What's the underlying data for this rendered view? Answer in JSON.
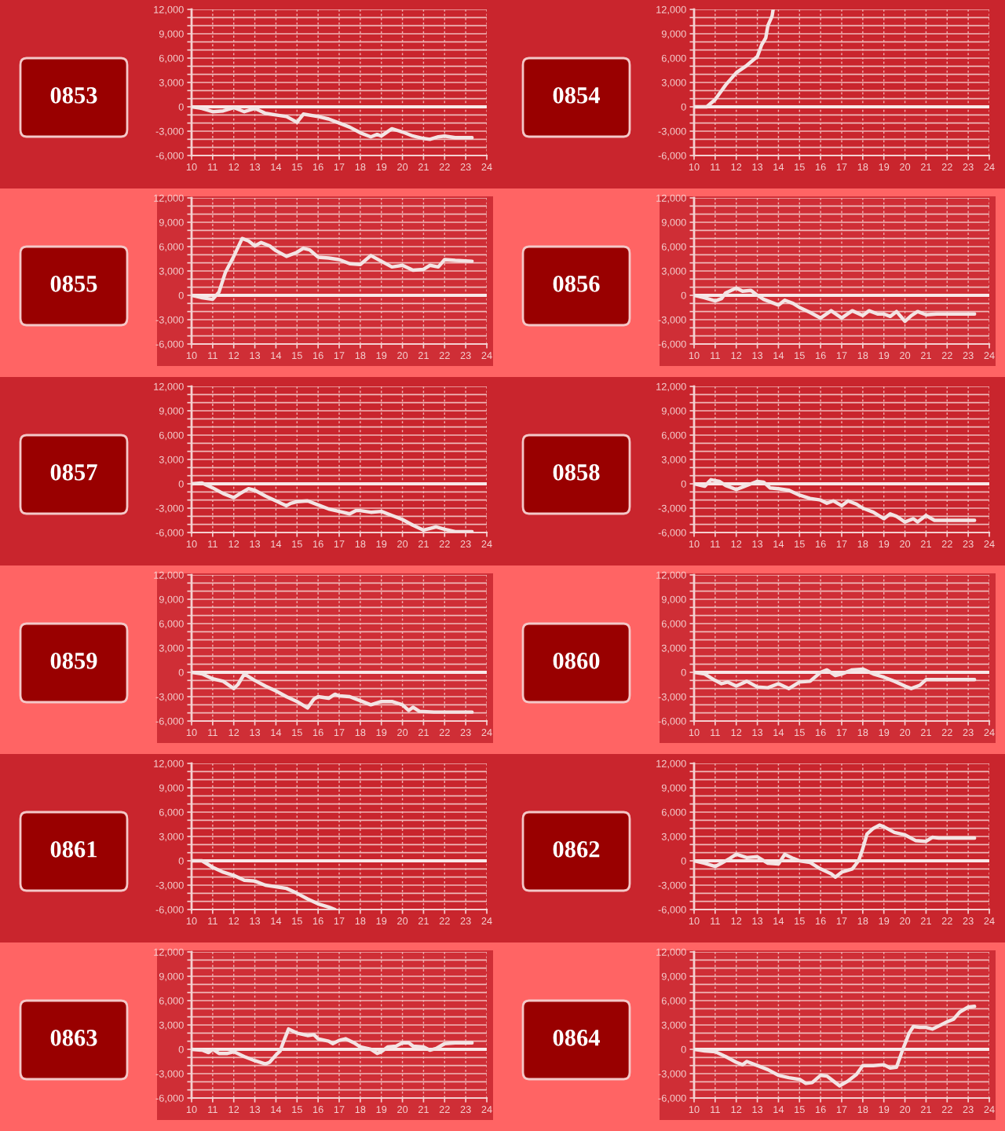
{
  "chart_data": [
    {
      "type": "line",
      "title": "0853",
      "xlim": [
        10,
        24
      ],
      "xticks": [
        10,
        11,
        12,
        13,
        14,
        15,
        16,
        17,
        18,
        19,
        20,
        21,
        22,
        23,
        24
      ],
      "ylim": [
        -6000,
        12000
      ],
      "yticks": [
        {
          "value": -6000,
          "label": "-6,000"
        },
        {
          "value": -5000,
          "label": null
        },
        {
          "value": -4000,
          "label": null
        },
        {
          "value": -3000,
          "label": "-3,000"
        },
        {
          "value": -2000,
          "label": null
        },
        {
          "value": -1000,
          "label": null
        },
        0,
        {
          "value": 1000,
          "label": null
        },
        {
          "value": 2000,
          "label": null
        },
        {
          "value": 3000,
          "label": "3,000"
        },
        {
          "value": 4000,
          "label": null
        },
        {
          "value": 5000,
          "label": null
        },
        {
          "value": 6000,
          "label": "6,000"
        },
        {
          "value": 7000,
          "label": null
        },
        {
          "value": 8000,
          "label": null
        },
        {
          "value": 9000,
          "label": "9,000"
        },
        {
          "value": 10000,
          "label": null
        },
        {
          "value": 11000,
          "label": null
        },
        {
          "value": 12000,
          "label": "12,000"
        }
      ],
      "grid": true,
      "ref_lines": [
        {
          "axis": "y",
          "value": 0
        }
      ],
      "series": [
        {
          "color": "#f3e4e4",
          "x": [
            10,
            10.5,
            11,
            11.5,
            12,
            12.5,
            13,
            13.5,
            14,
            14.5,
            15,
            15.3,
            16,
            16.5,
            17,
            17.5,
            18,
            18.5,
            18.8,
            19,
            19.5,
            20,
            20.5,
            21,
            21.3,
            21.7,
            22,
            22.5,
            23.3
          ],
          "values": [
            0,
            -200,
            -600,
            -500,
            -100,
            -600,
            -200,
            -800,
            -1000,
            -1200,
            -1900,
            -900,
            -1200,
            -1500,
            -2000,
            -2500,
            -3200,
            -3700,
            -3400,
            -3600,
            -2700,
            -3100,
            -3600,
            -3900,
            -4000,
            -3700,
            -3600,
            -3800,
            -3800
          ]
        }
      ]
    },
    {
      "type": "line",
      "title": "0854",
      "xlim": [
        10,
        24
      ],
      "xticks": [
        10,
        11,
        12,
        13,
        14,
        15,
        16,
        17,
        18,
        19,
        20,
        21,
        22,
        23,
        24
      ],
      "ylim": [
        -6000,
        12000
      ],
      "yticks": [
        {
          "value": -6000,
          "label": "-6,000"
        },
        {
          "value": -5000,
          "label": null
        },
        {
          "value": -4000,
          "label": null
        },
        {
          "value": -3000,
          "label": "-3,000"
        },
        {
          "value": -2000,
          "label": null
        },
        {
          "value": -1000,
          "label": null
        },
        0,
        {
          "value": 1000,
          "label": null
        },
        {
          "value": 2000,
          "label": null
        },
        {
          "value": 3000,
          "label": "3,000"
        },
        {
          "value": 4000,
          "label": null
        },
        {
          "value": 5000,
          "label": null
        },
        {
          "value": 6000,
          "label": "6,000"
        },
        {
          "value": 7000,
          "label": null
        },
        {
          "value": 8000,
          "label": null
        },
        {
          "value": 9000,
          "label": "9,000"
        },
        {
          "value": 10000,
          "label": null
        },
        {
          "value": 11000,
          "label": null
        },
        {
          "value": 12000,
          "label": "12,000"
        }
      ],
      "grid": true,
      "ref_lines": [
        {
          "axis": "y",
          "value": 0
        }
      ],
      "series": [
        {
          "color": "#f3e4e4",
          "x": [
            10,
            10.6,
            11,
            11.5,
            12,
            12.5,
            13,
            13.2,
            13.4,
            13.5,
            13.7,
            13.75
          ],
          "values": [
            0,
            0,
            900,
            2700,
            4200,
            5100,
            6200,
            7600,
            8500,
            10000,
            11200,
            12000
          ]
        }
      ]
    },
    {
      "type": "line",
      "title": "0855",
      "xlim": [
        10,
        24
      ],
      "xticks": [
        10,
        11,
        12,
        13,
        14,
        15,
        16,
        17,
        18,
        19,
        20,
        21,
        22,
        23,
        24
      ],
      "ylim": [
        -6000,
        12000
      ],
      "yticks": [
        {
          "value": -6000,
          "label": "-6,000"
        },
        {
          "value": -5000,
          "label": null
        },
        {
          "value": -4000,
          "label": null
        },
        {
          "value": -3000,
          "label": "-3,000"
        },
        {
          "value": -2000,
          "label": null
        },
        {
          "value": -1000,
          "label": null
        },
        0,
        {
          "value": 1000,
          "label": null
        },
        {
          "value": 2000,
          "label": null
        },
        {
          "value": 3000,
          "label": "3,000"
        },
        {
          "value": 4000,
          "label": null
        },
        {
          "value": 5000,
          "label": null
        },
        {
          "value": 6000,
          "label": "6,000"
        },
        {
          "value": 7000,
          "label": null
        },
        {
          "value": 8000,
          "label": null
        },
        {
          "value": 9000,
          "label": "9,000"
        },
        {
          "value": 10000,
          "label": null
        },
        {
          "value": 11000,
          "label": null
        },
        {
          "value": 12000,
          "label": "12,000"
        }
      ],
      "grid": true,
      "ref_lines": [
        {
          "axis": "y",
          "value": 0
        }
      ],
      "series": [
        {
          "color": "#f3e4e4",
          "x": [
            10,
            10.5,
            11,
            11.3,
            11.6,
            12,
            12.4,
            12.7,
            13,
            13.3,
            13.7,
            14,
            14.5,
            15,
            15.3,
            15.6,
            16,
            16.5,
            17,
            17.5,
            18,
            18.5,
            19,
            19.5,
            20,
            20.5,
            21,
            21.3,
            21.7,
            22,
            22.5,
            23.3
          ],
          "values": [
            0,
            -300,
            -500,
            400,
            2800,
            4800,
            7000,
            6700,
            6100,
            6500,
            6100,
            5500,
            4800,
            5300,
            5800,
            5600,
            4700,
            4600,
            4400,
            3900,
            3800,
            4900,
            4200,
            3500,
            3700,
            3100,
            3200,
            3700,
            3500,
            4400,
            4300,
            4200
          ]
        }
      ]
    },
    {
      "type": "line",
      "title": "0856",
      "xlim": [
        10,
        24
      ],
      "xticks": [
        10,
        11,
        12,
        13,
        14,
        15,
        16,
        17,
        18,
        19,
        20,
        21,
        22,
        23,
        24
      ],
      "ylim": [
        -6000,
        12000
      ],
      "yticks": [
        {
          "value": -6000,
          "label": "-6,000"
        },
        {
          "value": -5000,
          "label": null
        },
        {
          "value": -4000,
          "label": null
        },
        {
          "value": -3000,
          "label": "-3,000"
        },
        {
          "value": -2000,
          "label": null
        },
        {
          "value": -1000,
          "label": null
        },
        0,
        {
          "value": 1000,
          "label": null
        },
        {
          "value": 2000,
          "label": null
        },
        {
          "value": 3000,
          "label": "3,000"
        },
        {
          "value": 4000,
          "label": null
        },
        {
          "value": 5000,
          "label": null
        },
        {
          "value": 6000,
          "label": "6,000"
        },
        {
          "value": 7000,
          "label": null
        },
        {
          "value": 8000,
          "label": null
        },
        {
          "value": 9000,
          "label": "9,000"
        },
        {
          "value": 10000,
          "label": null
        },
        {
          "value": 11000,
          "label": null
        },
        {
          "value": 12000,
          "label": "12,000"
        }
      ],
      "grid": true,
      "ref_lines": [
        {
          "axis": "y",
          "value": 0
        }
      ],
      "series": [
        {
          "color": "#f3e4e4",
          "x": [
            10,
            10.5,
            11,
            11.3,
            11.5,
            12,
            12.3,
            12.7,
            13,
            13.3,
            14,
            14.3,
            14.7,
            15,
            15.5,
            16,
            16.5,
            17,
            17.5,
            18,
            18.3,
            18.7,
            19,
            19.3,
            19.6,
            20,
            20.3,
            20.6,
            21,
            21.5,
            23.3
          ],
          "values": [
            0,
            -300,
            -700,
            -400,
            300,
            900,
            500,
            600,
            0,
            -500,
            -1200,
            -600,
            -1000,
            -1500,
            -2100,
            -2800,
            -1900,
            -2800,
            -1900,
            -2500,
            -1900,
            -2300,
            -2300,
            -2600,
            -2000,
            -3200,
            -2500,
            -2000,
            -2400,
            -2300,
            -2300
          ]
        }
      ]
    },
    {
      "type": "line",
      "title": "0857",
      "xlim": [
        10,
        24
      ],
      "xticks": [
        10,
        11,
        12,
        13,
        14,
        15,
        16,
        17,
        18,
        19,
        20,
        21,
        22,
        23,
        24
      ],
      "ylim": [
        -6000,
        12000
      ],
      "yticks": [
        {
          "value": -6000,
          "label": "-6,000"
        },
        {
          "value": -5000,
          "label": null
        },
        {
          "value": -4000,
          "label": null
        },
        {
          "value": -3000,
          "label": "-3,000"
        },
        {
          "value": -2000,
          "label": null
        },
        {
          "value": -1000,
          "label": null
        },
        0,
        {
          "value": 1000,
          "label": null
        },
        {
          "value": 2000,
          "label": null
        },
        {
          "value": 3000,
          "label": "3,000"
        },
        {
          "value": 4000,
          "label": null
        },
        {
          "value": 5000,
          "label": null
        },
        {
          "value": 6000,
          "label": "6,000"
        },
        {
          "value": 7000,
          "label": null
        },
        {
          "value": 8000,
          "label": null
        },
        {
          "value": 9000,
          "label": "9,000"
        },
        {
          "value": 10000,
          "label": null
        },
        {
          "value": 11000,
          "label": null
        },
        {
          "value": 12000,
          "label": "12,000"
        }
      ],
      "grid": true,
      "ref_lines": [
        {
          "axis": "y",
          "value": 0
        }
      ],
      "series": [
        {
          "color": "#f3e4e4",
          "x": [
            10,
            10.5,
            11,
            11.5,
            12,
            12.3,
            12.7,
            13,
            13.5,
            14,
            14.5,
            14.7,
            15,
            15.5,
            16,
            16.5,
            17,
            17.5,
            17.8,
            18,
            18.5,
            19,
            19.5,
            20,
            20.5,
            21,
            21.3,
            21.6,
            22,
            22.5,
            23.3
          ],
          "values": [
            0,
            100,
            -500,
            -1200,
            -1700,
            -1200,
            -600,
            -800,
            -1500,
            -2100,
            -2700,
            -2400,
            -2200,
            -2100,
            -2600,
            -3100,
            -3400,
            -3700,
            -3300,
            -3300,
            -3500,
            -3400,
            -3900,
            -4400,
            -5100,
            -5700,
            -5500,
            -5300,
            -5600,
            -5900,
            -5900
          ]
        }
      ]
    },
    {
      "type": "line",
      "title": "0858",
      "xlim": [
        10,
        24
      ],
      "xticks": [
        10,
        11,
        12,
        13,
        14,
        15,
        16,
        17,
        18,
        19,
        20,
        21,
        22,
        23,
        24
      ],
      "ylim": [
        -6000,
        12000
      ],
      "yticks": [
        {
          "value": -6000,
          "label": "-6,000"
        },
        {
          "value": -5000,
          "label": null
        },
        {
          "value": -4000,
          "label": null
        },
        {
          "value": -3000,
          "label": "-3,000"
        },
        {
          "value": -2000,
          "label": null
        },
        {
          "value": -1000,
          "label": null
        },
        0,
        {
          "value": 1000,
          "label": null
        },
        {
          "value": 2000,
          "label": null
        },
        {
          "value": 3000,
          "label": "3,000"
        },
        {
          "value": 4000,
          "label": null
        },
        {
          "value": 5000,
          "label": null
        },
        {
          "value": 6000,
          "label": "6,000"
        },
        {
          "value": 7000,
          "label": null
        },
        {
          "value": 8000,
          "label": null
        },
        {
          "value": 9000,
          "label": "9,000"
        },
        {
          "value": 10000,
          "label": null
        },
        {
          "value": 11000,
          "label": null
        },
        {
          "value": 12000,
          "label": "12,000"
        }
      ],
      "grid": true,
      "ref_lines": [
        {
          "axis": "y",
          "value": 0
        }
      ],
      "series": [
        {
          "color": "#f3e4e4",
          "x": [
            10,
            10.5,
            10.8,
            11.2,
            11.5,
            12,
            12.3,
            12.7,
            13,
            13.3,
            13.6,
            14,
            14.5,
            15,
            15.5,
            16,
            16.3,
            16.6,
            17,
            17.3,
            17.7,
            18,
            18.5,
            19,
            19.3,
            19.6,
            20,
            20.4,
            20.6,
            21,
            21.4,
            22,
            23.3
          ],
          "values": [
            0,
            -300,
            500,
            300,
            -200,
            -700,
            -400,
            0,
            300,
            200,
            -500,
            -600,
            -800,
            -1400,
            -1800,
            -2000,
            -2400,
            -2100,
            -2700,
            -2100,
            -2500,
            -3000,
            -3500,
            -4300,
            -3700,
            -4000,
            -4700,
            -4300,
            -4700,
            -3900,
            -4500,
            -4500,
            -4500
          ]
        }
      ]
    },
    {
      "type": "line",
      "title": "0859",
      "xlim": [
        10,
        24
      ],
      "xticks": [
        10,
        11,
        12,
        13,
        14,
        15,
        16,
        17,
        18,
        19,
        20,
        21,
        22,
        23,
        24
      ],
      "ylim": [
        -6000,
        12000
      ],
      "yticks": [
        {
          "value": -6000,
          "label": "-6,000"
        },
        {
          "value": -5000,
          "label": null
        },
        {
          "value": -4000,
          "label": null
        },
        {
          "value": -3000,
          "label": "-3,000"
        },
        {
          "value": -2000,
          "label": null
        },
        {
          "value": -1000,
          "label": null
        },
        0,
        {
          "value": 1000,
          "label": null
        },
        {
          "value": 2000,
          "label": null
        },
        {
          "value": 3000,
          "label": "3,000"
        },
        {
          "value": 4000,
          "label": null
        },
        {
          "value": 5000,
          "label": null
        },
        {
          "value": 6000,
          "label": "6,000"
        },
        {
          "value": 7000,
          "label": null
        },
        {
          "value": 8000,
          "label": null
        },
        {
          "value": 9000,
          "label": "9,000"
        },
        {
          "value": 10000,
          "label": null
        },
        {
          "value": 11000,
          "label": null
        },
        {
          "value": 12000,
          "label": "12,000"
        }
      ],
      "grid": true,
      "ref_lines": [
        {
          "axis": "y",
          "value": 0
        }
      ],
      "series": [
        {
          "color": "#f3e4e4",
          "x": [
            10,
            10.5,
            11,
            11.5,
            12,
            12.2,
            12.5,
            13,
            13.5,
            14,
            14.5,
            15,
            15.5,
            15.8,
            16,
            16.5,
            16.8,
            17,
            17.5,
            18,
            18.5,
            19,
            19.5,
            20,
            20.3,
            20.5,
            20.8,
            21.5,
            23.3
          ],
          "values": [
            0,
            -200,
            -800,
            -1100,
            -2000,
            -1500,
            -200,
            -1000,
            -1700,
            -2300,
            -3000,
            -3600,
            -4400,
            -3300,
            -3000,
            -3200,
            -2700,
            -2900,
            -3000,
            -3500,
            -4000,
            -3600,
            -3600,
            -4000,
            -4700,
            -4300,
            -4800,
            -4900,
            -4900
          ]
        }
      ]
    },
    {
      "type": "line",
      "title": "0860",
      "xlim": [
        10,
        24
      ],
      "xticks": [
        10,
        11,
        12,
        13,
        14,
        15,
        16,
        17,
        18,
        19,
        20,
        21,
        22,
        23,
        24
      ],
      "ylim": [
        -6000,
        12000
      ],
      "yticks": [
        {
          "value": -6000,
          "label": "-6,000"
        },
        {
          "value": -5000,
          "label": null
        },
        {
          "value": -4000,
          "label": null
        },
        {
          "value": -3000,
          "label": "-3,000"
        },
        {
          "value": -2000,
          "label": null
        },
        {
          "value": -1000,
          "label": null
        },
        0,
        {
          "value": 1000,
          "label": null
        },
        {
          "value": 2000,
          "label": null
        },
        {
          "value": 3000,
          "label": "3,000"
        },
        {
          "value": 4000,
          "label": null
        },
        {
          "value": 5000,
          "label": null
        },
        {
          "value": 6000,
          "label": "6,000"
        },
        {
          "value": 7000,
          "label": null
        },
        {
          "value": 8000,
          "label": null
        },
        {
          "value": 9000,
          "label": "9,000"
        },
        {
          "value": 10000,
          "label": null
        },
        {
          "value": 11000,
          "label": null
        },
        {
          "value": 12000,
          "label": "12,000"
        }
      ],
      "grid": true,
      "ref_lines": [
        {
          "axis": "y",
          "value": 0
        }
      ],
      "series": [
        {
          "color": "#f3e4e4",
          "x": [
            10,
            10.5,
            11,
            11.3,
            11.6,
            12,
            12.5,
            13,
            13.5,
            14,
            14.5,
            15,
            15.5,
            16,
            16.3,
            16.7,
            17,
            17.5,
            18,
            18.5,
            19,
            19.5,
            20,
            20.3,
            20.7,
            21,
            21.5,
            23.3
          ],
          "values": [
            0,
            -200,
            -1000,
            -1400,
            -1200,
            -1700,
            -1100,
            -1800,
            -1900,
            -1400,
            -2000,
            -1200,
            -1100,
            0,
            300,
            -400,
            -200,
            300,
            400,
            -200,
            -600,
            -1100,
            -1700,
            -2000,
            -1600,
            -900,
            -900,
            -900
          ]
        }
      ]
    },
    {
      "type": "line",
      "title": "0861",
      "xlim": [
        10,
        24
      ],
      "xticks": [
        10,
        11,
        12,
        13,
        14,
        15,
        16,
        17,
        18,
        19,
        20,
        21,
        22,
        23,
        24
      ],
      "ylim": [
        -6000,
        12000
      ],
      "yticks": [
        {
          "value": -6000,
          "label": "-6,000"
        },
        {
          "value": -5000,
          "label": null
        },
        {
          "value": -4000,
          "label": null
        },
        {
          "value": -3000,
          "label": "-3,000"
        },
        {
          "value": -2000,
          "label": null
        },
        {
          "value": -1000,
          "label": null
        },
        0,
        {
          "value": 1000,
          "label": null
        },
        {
          "value": 2000,
          "label": null
        },
        {
          "value": 3000,
          "label": "3,000"
        },
        {
          "value": 4000,
          "label": null
        },
        {
          "value": 5000,
          "label": null
        },
        {
          "value": 6000,
          "label": "6,000"
        },
        {
          "value": 7000,
          "label": null
        },
        {
          "value": 8000,
          "label": null
        },
        {
          "value": 9000,
          "label": "9,000"
        },
        {
          "value": 10000,
          "label": null
        },
        {
          "value": 11000,
          "label": null
        },
        {
          "value": 12000,
          "label": "12,000"
        }
      ],
      "grid": true,
      "ref_lines": [
        {
          "axis": "y",
          "value": 0
        }
      ],
      "series": [
        {
          "color": "#f3e4e4",
          "x": [
            10,
            10.5,
            11,
            11.5,
            12,
            12.5,
            13,
            13.5,
            14,
            14.5,
            15,
            15.5,
            16,
            16.5,
            16.8
          ],
          "values": [
            0,
            0,
            -800,
            -1400,
            -1800,
            -2400,
            -2500,
            -3000,
            -3200,
            -3400,
            -4000,
            -4700,
            -5300,
            -5700,
            -6000
          ]
        }
      ]
    },
    {
      "type": "line",
      "title": "0862",
      "xlim": [
        10,
        24
      ],
      "xticks": [
        10,
        11,
        12,
        13,
        14,
        15,
        16,
        17,
        18,
        19,
        20,
        21,
        22,
        23,
        24
      ],
      "ylim": [
        -6000,
        12000
      ],
      "yticks": [
        {
          "value": -6000,
          "label": "-6,000"
        },
        {
          "value": -5000,
          "label": null
        },
        {
          "value": -4000,
          "label": null
        },
        {
          "value": -3000,
          "label": "-3,000"
        },
        {
          "value": -2000,
          "label": null
        },
        {
          "value": -1000,
          "label": null
        },
        0,
        {
          "value": 1000,
          "label": null
        },
        {
          "value": 2000,
          "label": null
        },
        {
          "value": 3000,
          "label": "3,000"
        },
        {
          "value": 4000,
          "label": null
        },
        {
          "value": 5000,
          "label": null
        },
        {
          "value": 6000,
          "label": "6,000"
        },
        {
          "value": 7000,
          "label": null
        },
        {
          "value": 8000,
          "label": null
        },
        {
          "value": 9000,
          "label": "9,000"
        },
        {
          "value": 10000,
          "label": null
        },
        {
          "value": 11000,
          "label": null
        },
        {
          "value": 12000,
          "label": "12,000"
        }
      ],
      "grid": true,
      "ref_lines": [
        {
          "axis": "y",
          "value": 0
        }
      ],
      "series": [
        {
          "color": "#f3e4e4",
          "x": [
            10,
            10.5,
            11,
            11.3,
            11.7,
            12,
            12.5,
            13,
            13.5,
            14,
            14.3,
            14.7,
            15,
            15.5,
            16,
            16.5,
            16.7,
            17,
            17.5,
            17.8,
            18,
            18.2,
            18.5,
            18.8,
            19,
            19.5,
            20,
            20.5,
            21,
            21.3,
            21.6,
            23.3
          ],
          "values": [
            0,
            -300,
            -700,
            -300,
            300,
            800,
            400,
            500,
            -300,
            -400,
            800,
            300,
            0,
            -200,
            -1000,
            -1600,
            -2000,
            -1400,
            -1000,
            0,
            1500,
            3300,
            4000,
            4400,
            4200,
            3500,
            3200,
            2500,
            2400,
            2900,
            2800,
            2800
          ]
        }
      ]
    },
    {
      "type": "line",
      "title": "0863",
      "xlim": [
        10,
        24
      ],
      "xticks": [
        10,
        11,
        12,
        13,
        14,
        15,
        16,
        17,
        18,
        19,
        20,
        21,
        22,
        23,
        24
      ],
      "ylim": [
        -6000,
        12000
      ],
      "yticks": [
        {
          "value": -6000,
          "label": "-6,000"
        },
        {
          "value": -5000,
          "label": null
        },
        {
          "value": -4000,
          "label": null
        },
        {
          "value": -3000,
          "label": "-3,000"
        },
        {
          "value": -2000,
          "label": null
        },
        {
          "value": -1000,
          "label": null
        },
        0,
        {
          "value": 1000,
          "label": null
        },
        {
          "value": 2000,
          "label": null
        },
        {
          "value": 3000,
          "label": "3,000"
        },
        {
          "value": 4000,
          "label": null
        },
        {
          "value": 5000,
          "label": null
        },
        {
          "value": 6000,
          "label": "6,000"
        },
        {
          "value": 7000,
          "label": null
        },
        {
          "value": 8000,
          "label": null
        },
        {
          "value": 9000,
          "label": "9,000"
        },
        {
          "value": 10000,
          "label": null
        },
        {
          "value": 11000,
          "label": null
        },
        {
          "value": 12000,
          "label": "12,000"
        }
      ],
      "grid": true,
      "ref_lines": [
        {
          "axis": "y",
          "value": 0
        }
      ],
      "series": [
        {
          "color": "#f3e4e4",
          "x": [
            10,
            10.5,
            10.8,
            11,
            11.3,
            11.7,
            12,
            12.5,
            13,
            13.5,
            13.7,
            14,
            14.2,
            14.4,
            14.6,
            15,
            15.5,
            15.8,
            16,
            16.5,
            16.7,
            17,
            17.3,
            17.7,
            18,
            18.5,
            18.8,
            19,
            19.3,
            19.7,
            20,
            20.3,
            20.5,
            21,
            21.3,
            21.6,
            22,
            22.5,
            23.3
          ],
          "values": [
            0,
            -100,
            -400,
            0,
            -500,
            -500,
            -300,
            -900,
            -1400,
            -1800,
            -1600,
            -700,
            -200,
            1200,
            2500,
            2000,
            1700,
            1800,
            1300,
            1000,
            700,
            1100,
            1300,
            800,
            300,
            0,
            -500,
            -300,
            300,
            400,
            800,
            800,
            400,
            300,
            -100,
            100,
            700,
            800,
            800
          ]
        }
      ]
    },
    {
      "type": "line",
      "title": "0864",
      "xlim": [
        10,
        24
      ],
      "xticks": [
        10,
        11,
        12,
        13,
        14,
        15,
        16,
        17,
        18,
        19,
        20,
        21,
        22,
        23,
        24
      ],
      "ylim": [
        -6000,
        12000
      ],
      "yticks": [
        {
          "value": -6000,
          "label": "-6,000"
        },
        {
          "value": -5000,
          "label": null
        },
        {
          "value": -4000,
          "label": null
        },
        {
          "value": -3000,
          "label": "-3,000"
        },
        {
          "value": -2000,
          "label": null
        },
        {
          "value": -1000,
          "label": null
        },
        0,
        {
          "value": 1000,
          "label": null
        },
        {
          "value": 2000,
          "label": null
        },
        {
          "value": 3000,
          "label": "3,000"
        },
        {
          "value": 4000,
          "label": null
        },
        {
          "value": 5000,
          "label": null
        },
        {
          "value": 6000,
          "label": "6,000"
        },
        {
          "value": 7000,
          "label": null
        },
        {
          "value": 8000,
          "label": null
        },
        {
          "value": 9000,
          "label": "9,000"
        },
        {
          "value": 10000,
          "label": null
        },
        {
          "value": 11000,
          "label": null
        },
        {
          "value": 12000,
          "label": "12,000"
        }
      ],
      "grid": true,
      "ref_lines": [
        {
          "axis": "y",
          "value": 0
        }
      ],
      "series": [
        {
          "color": "#f3e4e4",
          "x": [
            10,
            10.5,
            11,
            11.5,
            12,
            12.3,
            12.5,
            13,
            13.5,
            14,
            14.5,
            15,
            15.3,
            15.6,
            16,
            16.3,
            16.7,
            16.9,
            17.3,
            17.7,
            18,
            18.5,
            19,
            19.3,
            19.6,
            19.9,
            20.2,
            20.4,
            20.7,
            21,
            21.3,
            21.7,
            22,
            22.3,
            22.6,
            23,
            23.3
          ],
          "values": [
            0,
            -200,
            -300,
            -900,
            -1600,
            -1900,
            -1500,
            -2000,
            -2500,
            -3200,
            -3500,
            -3700,
            -4200,
            -4100,
            -3200,
            -3300,
            -4100,
            -4500,
            -3900,
            -3100,
            -2000,
            -2000,
            -1900,
            -2300,
            -2200,
            0,
            2000,
            2800,
            2700,
            2700,
            2500,
            3000,
            3400,
            3700,
            4600,
            5200,
            5300
          ]
        }
      ]
    }
  ]
}
